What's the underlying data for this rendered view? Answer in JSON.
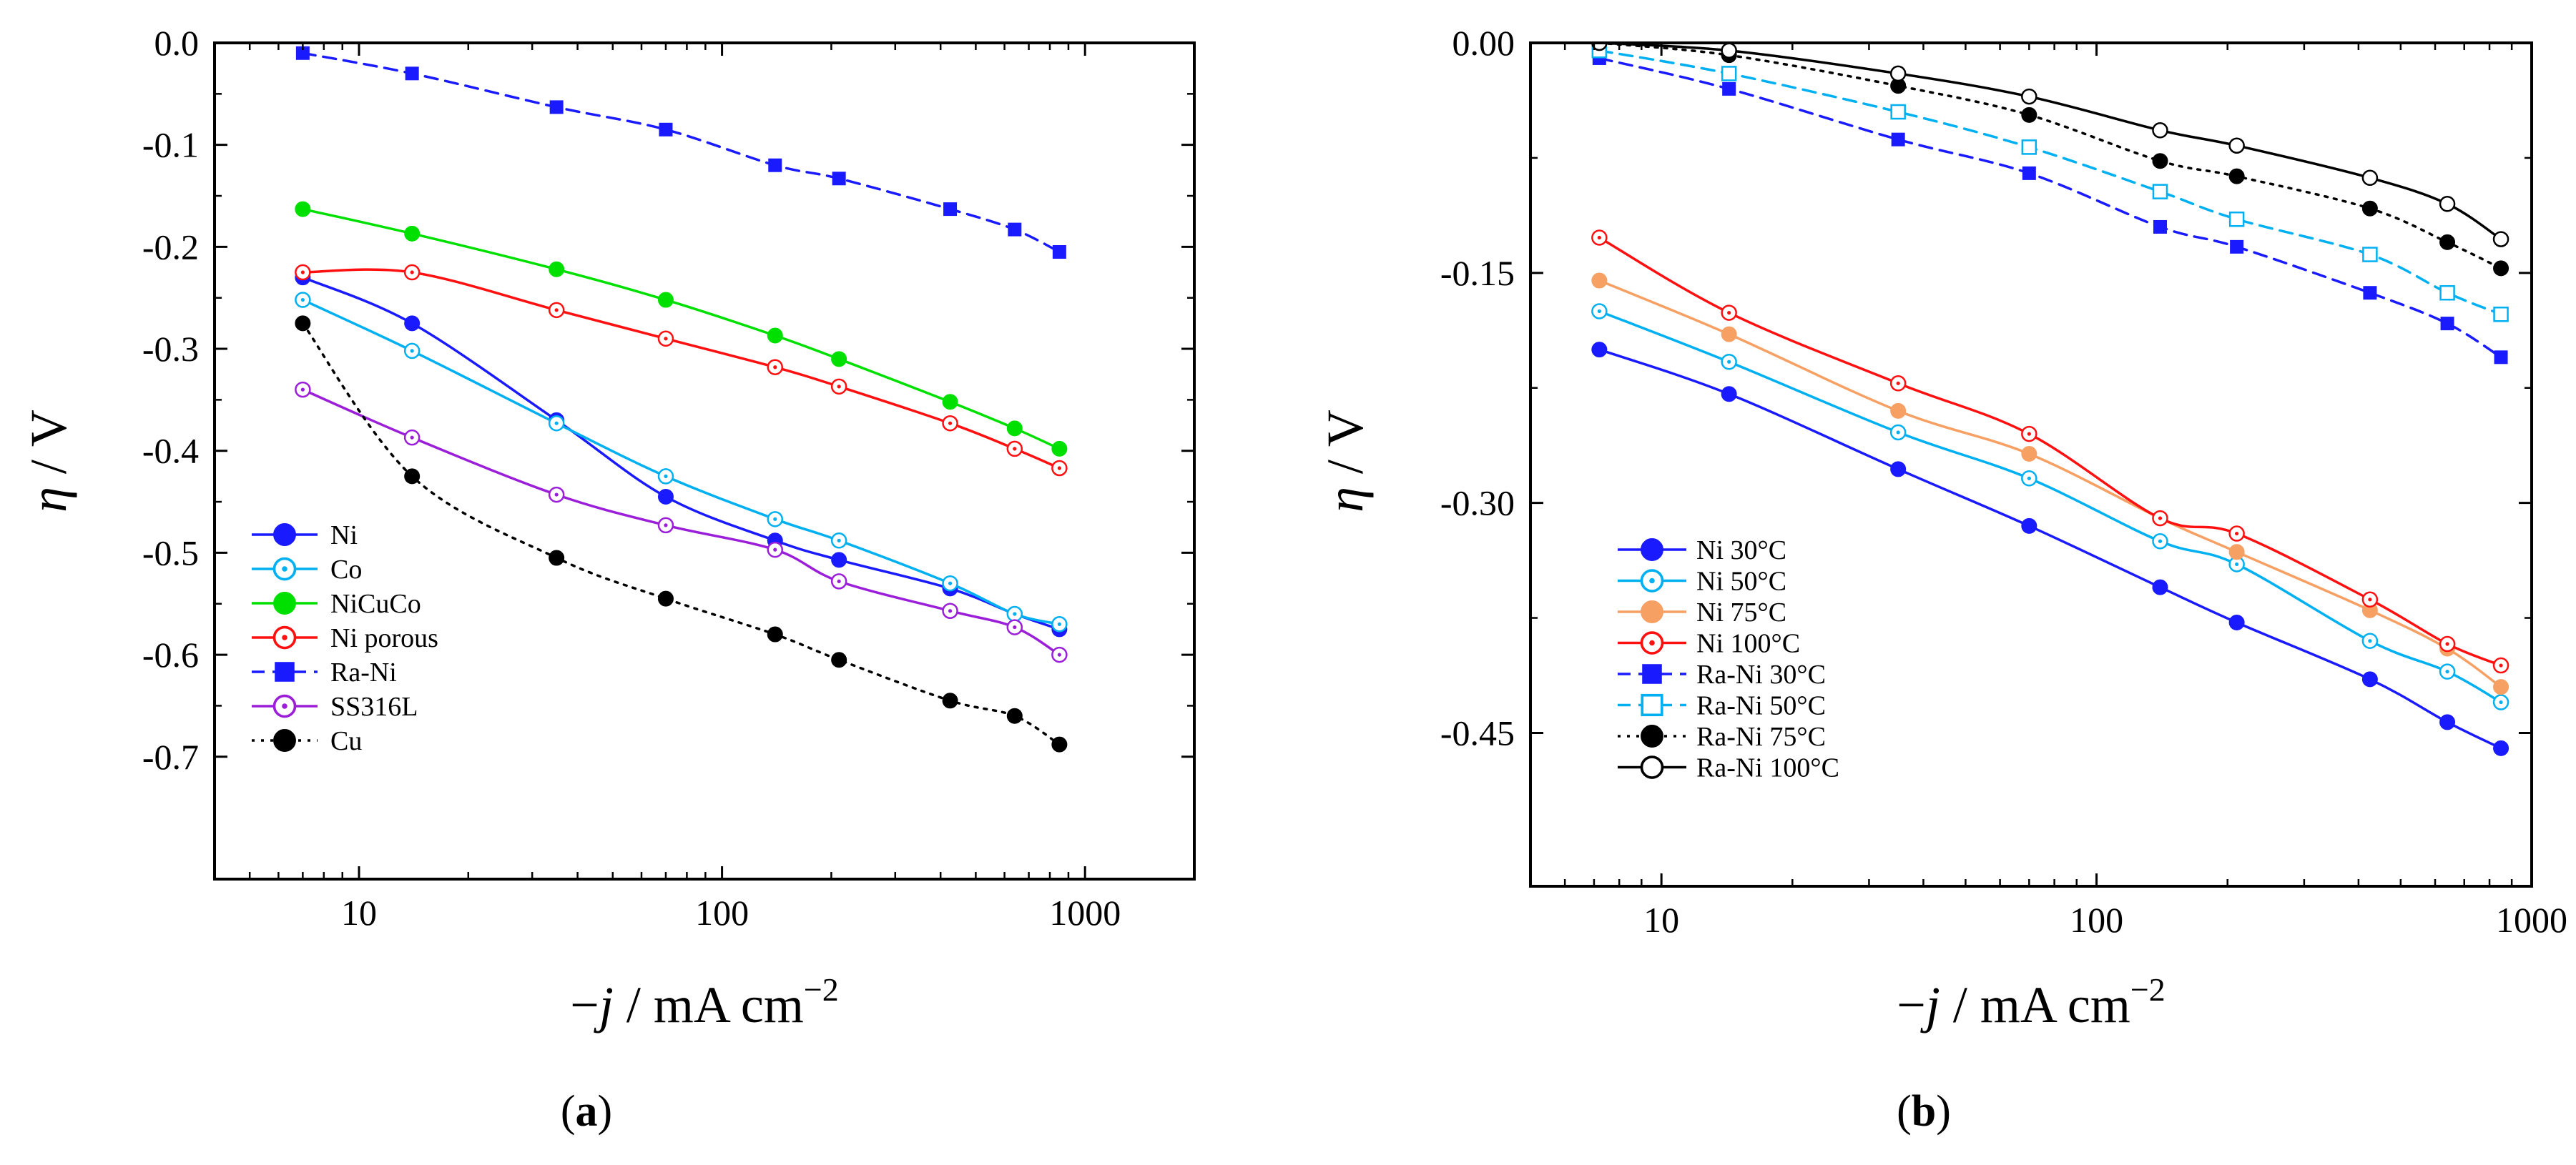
{
  "chart_data": [
    {
      "type": "line",
      "panel_label": {
        "pre": "(",
        "letter": "a",
        "post": ")"
      },
      "xscale": "log",
      "xlim": [
        4,
        2000
      ],
      "ylim": [
        -0.82,
        0.0
      ],
      "xticks": [
        10,
        100,
        1000
      ],
      "xtick_labels": [
        "10",
        "100",
        "1000"
      ],
      "yticks": [
        0.0,
        -0.1,
        -0.2,
        -0.3,
        -0.4,
        -0.5,
        -0.6,
        -0.7
      ],
      "ytick_labels": [
        "0.0",
        "-0.1",
        "-0.2",
        "-0.3",
        "-0.4",
        "-0.5",
        "-0.6",
        "-0.7"
      ],
      "xlabel": {
        "minus": "−",
        "var": "j",
        "rest": " / mA cm",
        "sup": "−2"
      },
      "ylabel": {
        "var": "η",
        "rest": " / V"
      },
      "legend_position": "bottom-left",
      "x": [
        7,
        14,
        35,
        70,
        140,
        210,
        425,
        640,
        850
      ],
      "series": [
        {
          "name": "Ni",
          "color": "#1a1aff",
          "marker": "filled-circle",
          "dash": "solid",
          "values": [
            -0.23,
            -0.275,
            -0.37,
            -0.445,
            -0.488,
            -0.507,
            -0.535,
            -0.56,
            -0.575
          ]
        },
        {
          "name": "Co",
          "color": "#00b0f0",
          "marker": "open-dot-circle",
          "dash": "solid",
          "values": [
            -0.252,
            -0.302,
            -0.373,
            -0.425,
            -0.467,
            -0.488,
            -0.53,
            -0.56,
            -0.57
          ]
        },
        {
          "name": "NiCuCo",
          "color": "#00e000",
          "marker": "filled-circle",
          "dash": "solid",
          "values": [
            -0.163,
            -0.187,
            -0.222,
            -0.252,
            -0.287,
            -0.31,
            -0.352,
            -0.378,
            -0.398
          ]
        },
        {
          "name": "Ni porous",
          "color": "#ff1010",
          "marker": "open-dot-circle",
          "dash": "solid",
          "values": [
            -0.225,
            -0.225,
            -0.262,
            -0.29,
            -0.318,
            -0.337,
            -0.373,
            -0.398,
            -0.417
          ]
        },
        {
          "name": "Ra-Ni",
          "color": "#1a1aff",
          "marker": "filled-square",
          "dash": "dashed",
          "values": [
            -0.01,
            -0.03,
            -0.063,
            -0.085,
            -0.12,
            -0.133,
            -0.163,
            -0.183,
            -0.205
          ]
        },
        {
          "name": "SS316L",
          "color": "#9b1fd8",
          "marker": "open-dot-circle",
          "dash": "solid",
          "values": [
            -0.34,
            -0.387,
            -0.443,
            -0.473,
            -0.497,
            -0.528,
            -0.557,
            -0.573,
            -0.6
          ]
        },
        {
          "name": "Cu",
          "color": "#000000",
          "marker": "filled-circle",
          "dash": "dotted",
          "values": [
            -0.275,
            -0.425,
            -0.505,
            -0.545,
            -0.58,
            -0.605,
            -0.645,
            -0.66,
            -0.688
          ]
        }
      ]
    },
    {
      "type": "line",
      "panel_label": {
        "pre": "(",
        "letter": "b",
        "post": ")"
      },
      "xscale": "log",
      "xlim": [
        5,
        1000
      ],
      "ylim": [
        -0.55,
        0.0
      ],
      "xticks": [
        10,
        100,
        1000
      ],
      "xtick_labels": [
        "10",
        "100",
        "1000"
      ],
      "yticks": [
        0.0,
        -0.15,
        -0.3,
        -0.45
      ],
      "ytick_labels": [
        "0.00",
        "-0.15",
        "-0.30",
        "-0.45"
      ],
      "xlabel": {
        "minus": "−",
        "var": "j",
        "rest": " / mA cm",
        "sup": "−2"
      },
      "ylabel": {
        "var": "η",
        "rest": " / V"
      },
      "legend_position": "bottom-left",
      "x": [
        7.2,
        14.3,
        35,
        70,
        140,
        210,
        425,
        640,
        850
      ],
      "series": [
        {
          "name": "Ni 30°C",
          "color": "#1a1aff",
          "marker": "filled-circle",
          "dash": "solid",
          "values": [
            -0.2,
            -0.229,
            -0.278,
            -0.315,
            -0.355,
            -0.378,
            -0.415,
            -0.443,
            -0.46
          ]
        },
        {
          "name": "Ni 50°C",
          "color": "#00b0f0",
          "marker": "open-dot-circle",
          "dash": "solid",
          "values": [
            -0.175,
            -0.208,
            -0.254,
            -0.284,
            -0.325,
            -0.34,
            -0.39,
            -0.41,
            -0.43
          ]
        },
        {
          "name": "Ni 75°C",
          "color": "#f7a064",
          "marker": "filled-circle",
          "dash": "solid",
          "values": [
            -0.155,
            -0.19,
            -0.24,
            -0.268,
            -0.31,
            -0.332,
            -0.37,
            -0.395,
            -0.42
          ]
        },
        {
          "name": "Ni 100°C",
          "color": "#ff1010",
          "marker": "open-dot-circle",
          "dash": "solid",
          "values": [
            -0.127,
            -0.176,
            -0.222,
            -0.255,
            -0.31,
            -0.32,
            -0.363,
            -0.392,
            -0.406
          ]
        },
        {
          "name": "Ra-Ni 30°C",
          "color": "#1a1aff",
          "marker": "filled-square",
          "dash": "dashed",
          "values": [
            -0.01,
            -0.03,
            -0.063,
            -0.085,
            -0.12,
            -0.133,
            -0.163,
            -0.183,
            -0.205
          ]
        },
        {
          "name": "Ra-Ni 50°C",
          "color": "#00b0f0",
          "marker": "open-square",
          "dash": "dashed",
          "values": [
            -0.005,
            -0.02,
            -0.045,
            -0.068,
            -0.097,
            -0.115,
            -0.138,
            -0.163,
            -0.177
          ]
        },
        {
          "name": "Ra-Ni 75°C",
          "color": "#000000",
          "marker": "filled-circle",
          "dash": "dotted",
          "values": [
            0.0,
            -0.008,
            -0.028,
            -0.047,
            -0.077,
            -0.087,
            -0.108,
            -0.13,
            -0.147
          ]
        },
        {
          "name": "Ra-Ni 100°C",
          "color": "#000000",
          "marker": "open-circle",
          "dash": "solid",
          "values": [
            0.0,
            -0.005,
            -0.02,
            -0.035,
            -0.057,
            -0.067,
            -0.088,
            -0.105,
            -0.128
          ]
        }
      ]
    }
  ]
}
